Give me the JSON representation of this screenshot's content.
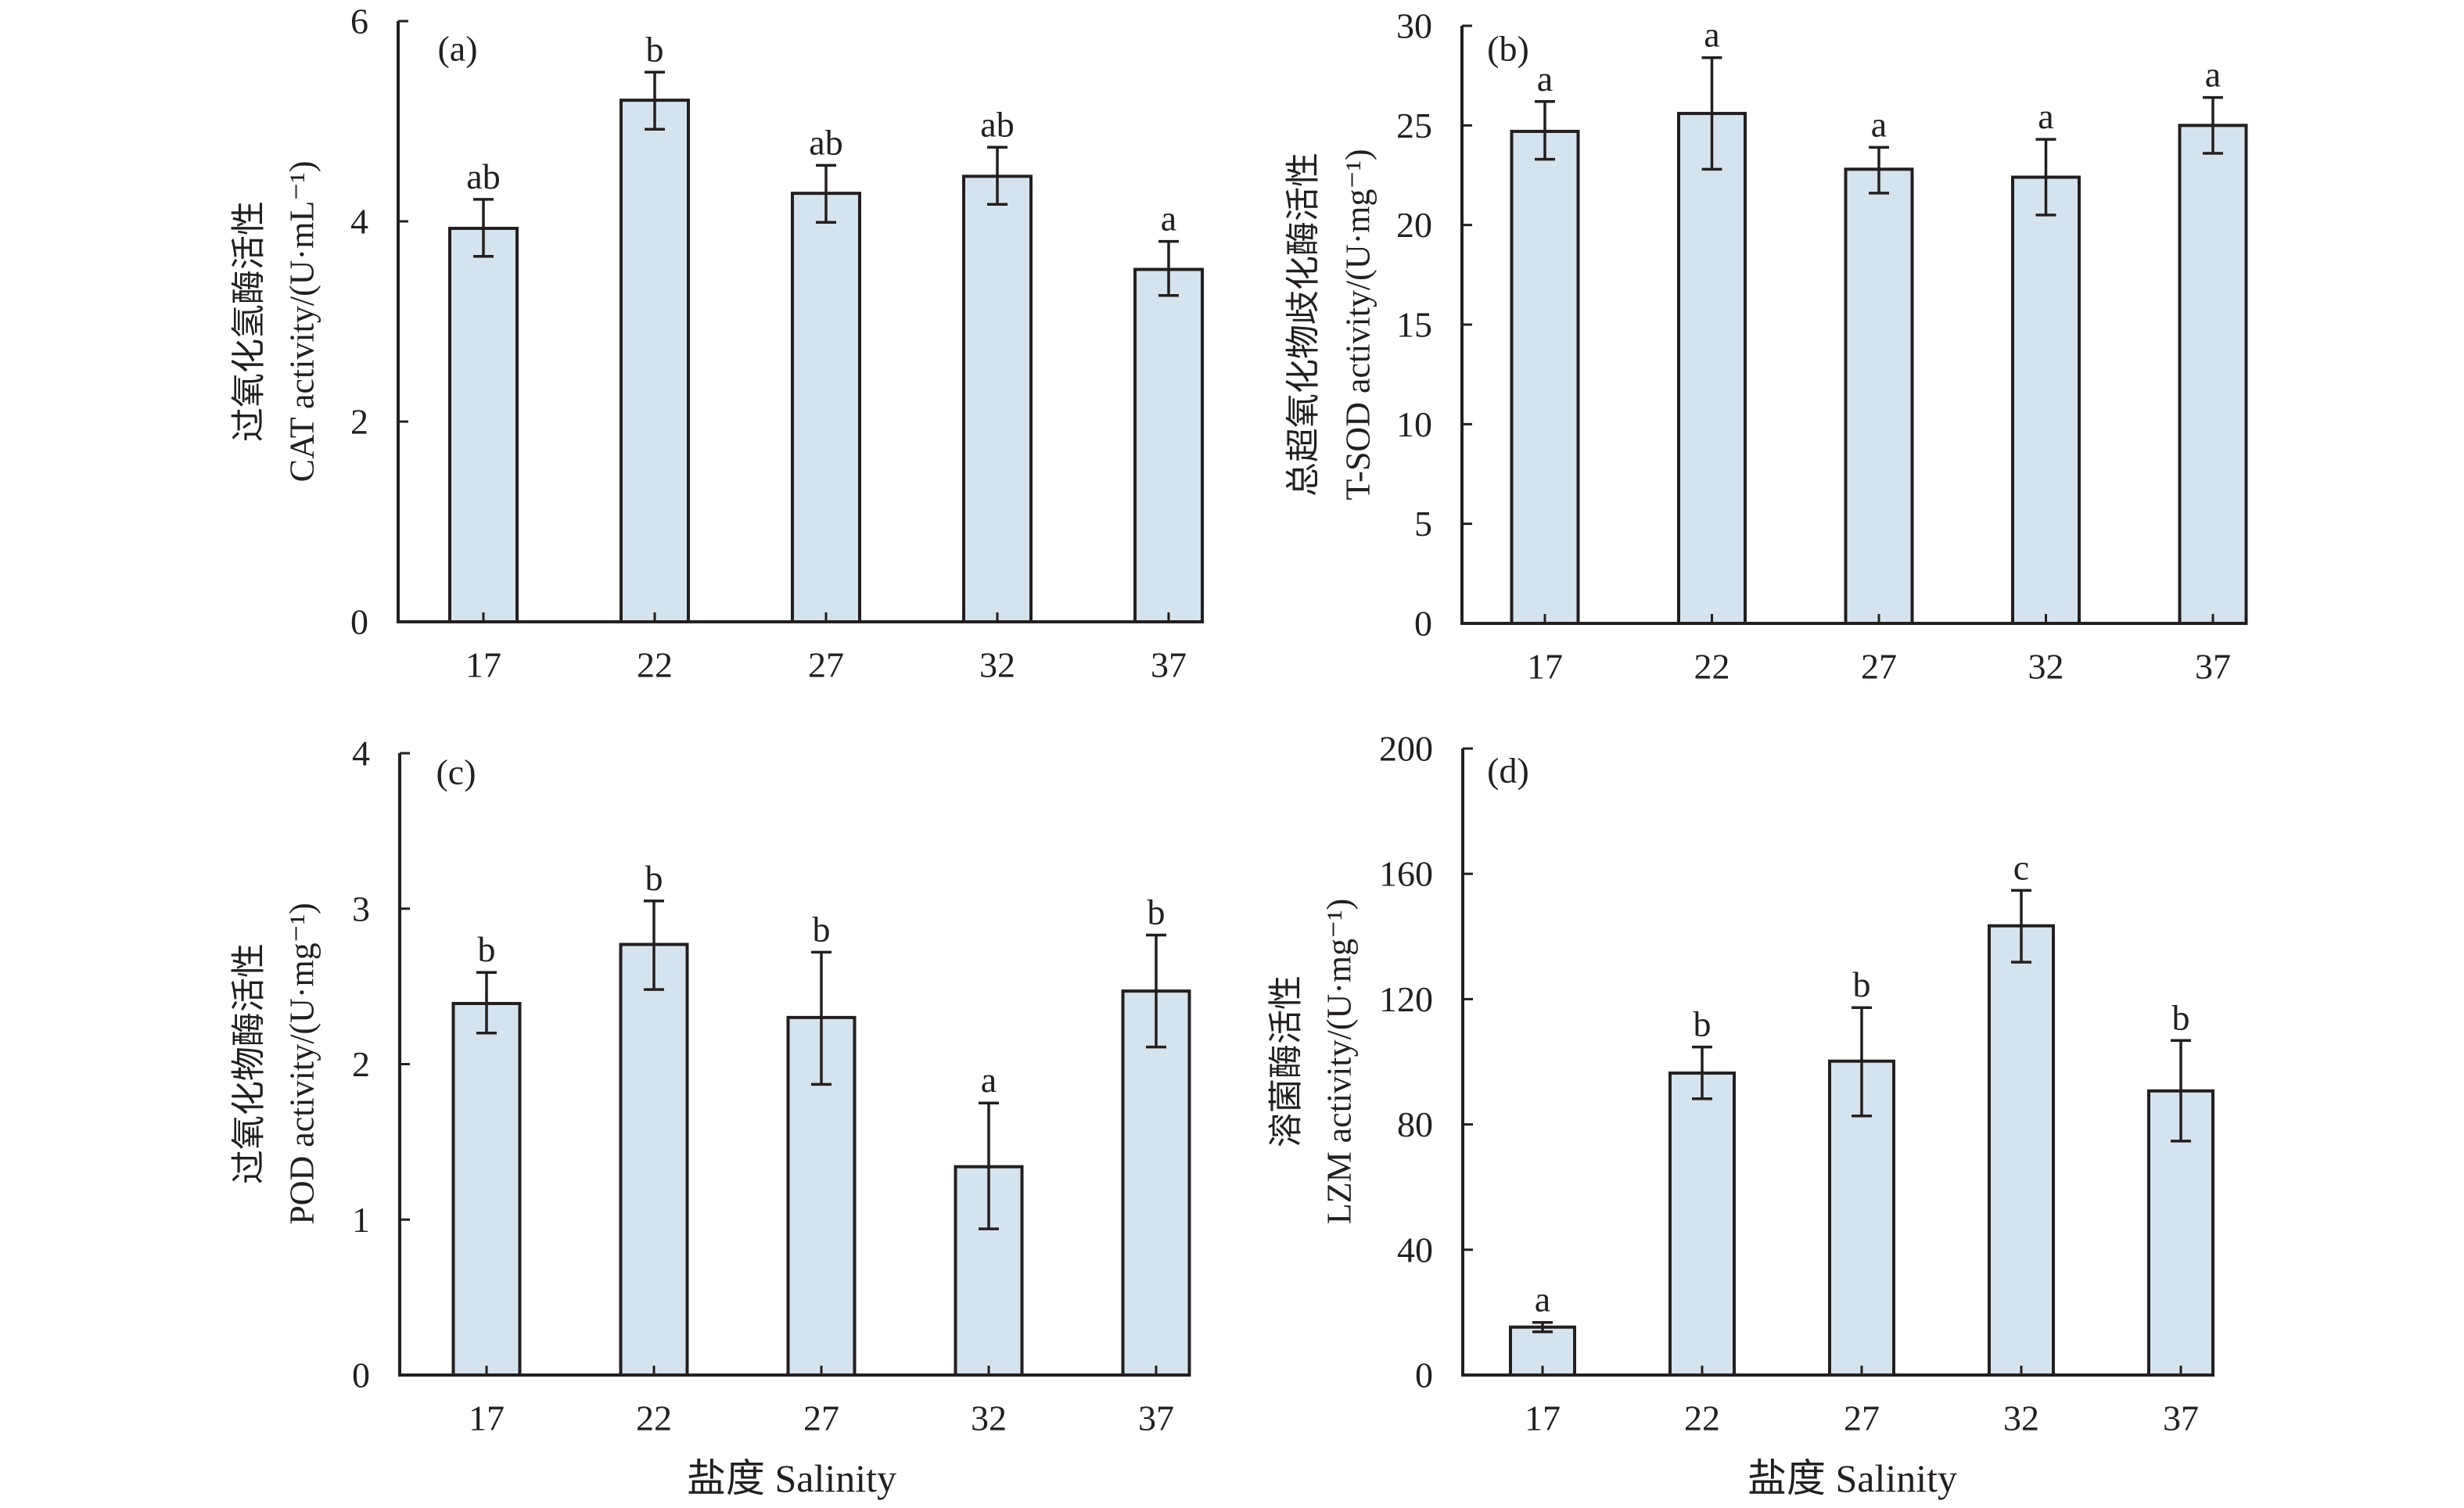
{
  "figure": {
    "x_axis_title": "盐度 Salinity"
  },
  "chart_data": [
    {
      "type": "bar",
      "panel": "(a)",
      "title": "",
      "ylabel_cn": "过氧化氢酶活性",
      "ylabel_en": "CAT activity/(U·mL⁻¹)",
      "xlabel": "",
      "categories": [
        "17",
        "22",
        "27",
        "32",
        "37"
      ],
      "values": [
        3.93,
        5.21,
        4.28,
        4.45,
        3.52
      ],
      "error_upper": [
        4.22,
        5.49,
        4.56,
        4.74,
        3.8
      ],
      "error_lower": [
        3.65,
        4.92,
        3.99,
        4.17,
        3.26
      ],
      "significance": [
        "ab",
        "b",
        "ab",
        "ab",
        "a"
      ],
      "ylim": [
        0,
        6
      ],
      "yticks": [
        0,
        2,
        4,
        6
      ],
      "grid": false,
      "bar_color": "#d5e3ee"
    },
    {
      "type": "bar",
      "panel": "(b)",
      "title": "",
      "ylabel_cn": "总超氧化物歧化酶活性",
      "ylabel_en": "T-SOD activity/(U·mg⁻¹)",
      "xlabel": "",
      "categories": [
        "17",
        "22",
        "27",
        "32",
        "37"
      ],
      "values": [
        24.7,
        25.6,
        22.8,
        22.4,
        25.0
      ],
      "error_upper": [
        26.2,
        28.4,
        23.9,
        24.3,
        26.4
      ],
      "error_lower": [
        23.3,
        22.8,
        21.6,
        20.5,
        23.6
      ],
      "significance": [
        "a",
        "a",
        "a",
        "a",
        "a"
      ],
      "ylim": [
        0,
        30
      ],
      "yticks": [
        0,
        5,
        10,
        15,
        20,
        25,
        30
      ],
      "grid": false,
      "bar_color": "#d5e3ee"
    },
    {
      "type": "bar",
      "panel": "(c)",
      "title": "",
      "ylabel_cn": "过氧化物酶活性",
      "ylabel_en": "POD activity/(U·mg⁻¹)",
      "xlabel": "盐度 Salinity",
      "categories": [
        "17",
        "22",
        "27",
        "32",
        "37"
      ],
      "values": [
        2.39,
        2.77,
        2.3,
        1.34,
        2.47
      ],
      "error_upper": [
        2.59,
        3.05,
        2.72,
        1.75,
        2.83
      ],
      "error_lower": [
        2.2,
        2.48,
        1.87,
        0.94,
        2.11
      ],
      "significance": [
        "b",
        "b",
        "b",
        "a",
        "b"
      ],
      "ylim": [
        0,
        4
      ],
      "yticks": [
        0,
        1,
        2,
        3,
        4
      ],
      "grid": false,
      "bar_color": "#d5e3ee"
    },
    {
      "type": "bar",
      "panel": "(d)",
      "title": "",
      "ylabel_cn": "溶菌酶活性",
      "ylabel_en": "LZM activity/(U·mg⁻¹)",
      "xlabel": "盐度 Salinity",
      "categories": [
        "17",
        "22",
        "27",
        "32",
        "37"
      ],
      "values": [
        15.3,
        96.4,
        100.2,
        143.4,
        90.7
      ],
      "error_upper": [
        16.8,
        104.7,
        117.3,
        154.7,
        106.8
      ],
      "error_lower": [
        13.8,
        88.2,
        82.7,
        131.8,
        74.7
      ],
      "significance": [
        "a",
        "b",
        "b",
        "c",
        "b"
      ],
      "ylim": [
        0,
        200
      ],
      "yticks": [
        0,
        40,
        80,
        120,
        160,
        200
      ],
      "grid": false,
      "bar_color": "#d5e3ee"
    }
  ]
}
